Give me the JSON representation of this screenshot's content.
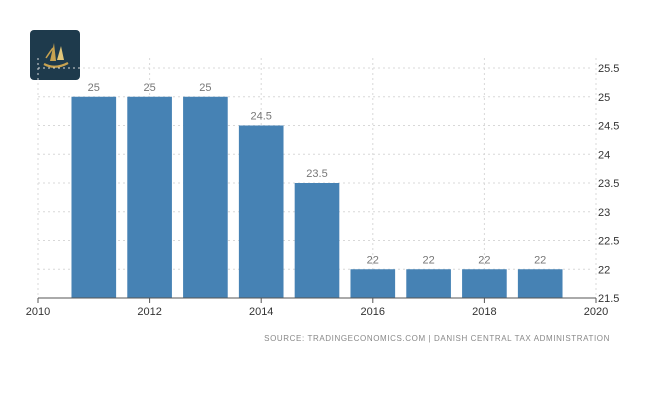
{
  "chart_data": {
    "type": "bar",
    "x": [
      2011,
      2012,
      2013,
      2014,
      2015,
      2016,
      2017,
      2018,
      2019
    ],
    "values": [
      25,
      25,
      25,
      24.5,
      23.5,
      22,
      22,
      22,
      22
    ],
    "data_labels": [
      "25",
      "25",
      "25",
      "24.5",
      "23.5",
      "22",
      "22",
      "22",
      "22"
    ],
    "xlim": [
      2010,
      2020
    ],
    "xticks": [
      "2010",
      "2012",
      "2014",
      "2016",
      "2018",
      "2020"
    ],
    "ylim": [
      21.5,
      25.5
    ],
    "yticks": [
      "21.5",
      "22",
      "22.5",
      "23",
      "23.5",
      "24",
      "24.5",
      "25",
      "25.5"
    ],
    "y_axis_side": "right",
    "grid": true,
    "bar_color": "#4682b4",
    "title": "",
    "xlabel": "",
    "ylabel": ""
  },
  "source": "SOURCE: TRADINGECONOMICS.COM | DANISH CENTRAL TAX ADMINISTRATION",
  "logo": {
    "icon": "sailboat-logo-icon",
    "background": "#1e3a4c",
    "accent": "#c8a250"
  }
}
